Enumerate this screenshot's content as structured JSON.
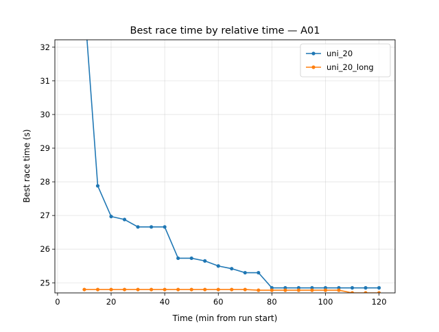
{
  "chart_data": {
    "type": "line",
    "title": "Best race time by relative time — A01",
    "xlabel": "Time (min from run start)",
    "ylabel": "Best race time (s)",
    "xlim": [
      -1,
      126
    ],
    "ylim": [
      24.7,
      32.22
    ],
    "xticks": [
      0,
      20,
      40,
      60,
      80,
      100,
      120
    ],
    "yticks": [
      25,
      26,
      27,
      28,
      29,
      30,
      31,
      32
    ],
    "grid": true,
    "legend_position": "top-right",
    "series": [
      {
        "name": "uni_20",
        "color": "#1f77b4",
        "x": [
          10,
          15,
          20,
          25,
          30,
          35,
          40,
          45,
          50,
          55,
          60,
          65,
          70,
          75,
          80,
          85,
          90,
          95,
          100,
          105,
          110,
          115,
          120
        ],
        "y": [
          33.3,
          27.88,
          26.97,
          26.88,
          26.66,
          26.66,
          26.66,
          25.73,
          25.73,
          25.65,
          25.5,
          25.42,
          25.3,
          25.3,
          24.85,
          24.85,
          24.85,
          24.85,
          24.85,
          24.85,
          24.85,
          24.85,
          24.85
        ]
      },
      {
        "name": "uni_20_long",
        "color": "#ff7f0e",
        "x": [
          10,
          15,
          20,
          25,
          30,
          35,
          40,
          45,
          50,
          55,
          60,
          65,
          70,
          75,
          80,
          85,
          90,
          95,
          100,
          105,
          110,
          115,
          120
        ],
        "y": [
          24.8,
          24.8,
          24.8,
          24.8,
          24.8,
          24.8,
          24.8,
          24.8,
          24.8,
          24.8,
          24.8,
          24.8,
          24.8,
          24.78,
          24.78,
          24.78,
          24.78,
          24.78,
          24.78,
          24.78,
          24.7,
          24.7,
          24.7
        ]
      }
    ]
  }
}
